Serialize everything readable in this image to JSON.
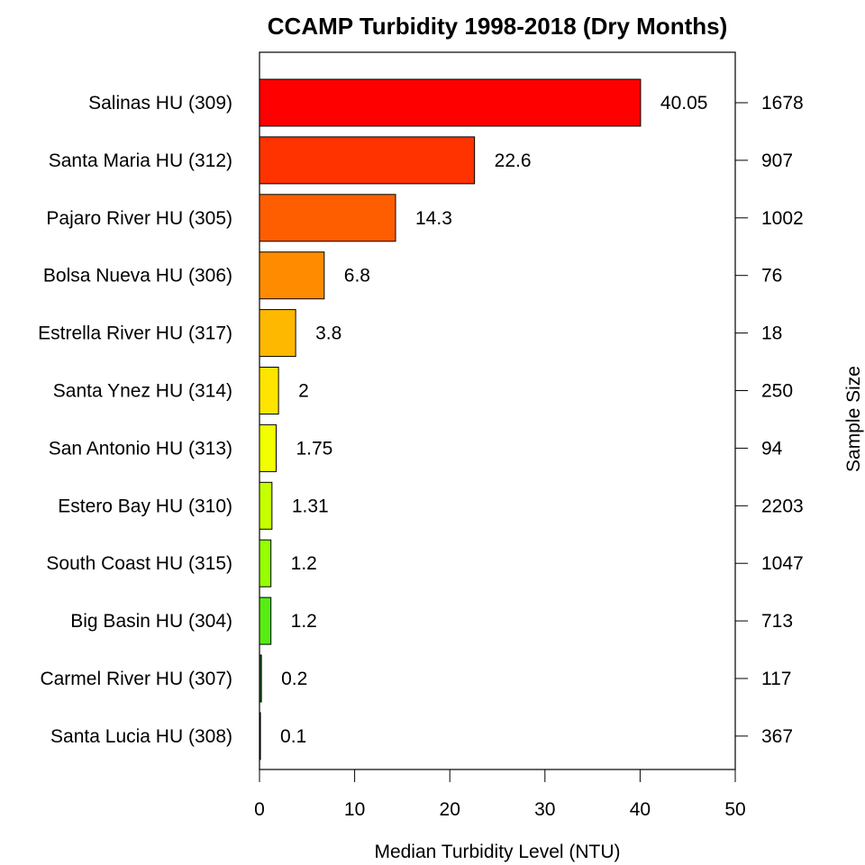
{
  "chart_data": {
    "type": "bar",
    "orientation": "horizontal",
    "title": "CCAMP Turbidity 1998-2018 (Dry Months)",
    "xlabel": "Median Turbidity Level (NTU)",
    "right_axis_label": "Sample Size",
    "xlim": [
      0,
      50
    ],
    "x_ticks": [
      0,
      10,
      20,
      30,
      40,
      50
    ],
    "grid": false,
    "categories": [
      "Salinas HU (309)",
      "Santa Maria HU (312)",
      "Pajaro River HU (305)",
      "Bolsa Nueva HU (306)",
      "Estrella River HU (317)",
      "Santa Ynez HU (314)",
      "San Antonio HU (313)",
      "Estero Bay HU (310)",
      "South Coast HU (315)",
      "Big Basin HU (304)",
      "Carmel River HU (307)",
      "Santa Lucia HU (308)"
    ],
    "values": [
      40.05,
      22.6,
      14.3,
      6.8,
      3.8,
      2,
      1.75,
      1.31,
      1.2,
      1.2,
      0.2,
      0.1
    ],
    "value_labels": [
      "40.05",
      "22.6",
      "14.3",
      "6.8",
      "3.8",
      "2",
      "1.75",
      "1.31",
      "1.2",
      "1.2",
      "0.2",
      "0.1"
    ],
    "sample_sizes": [
      "1678",
      "907",
      "1002",
      "76",
      "18",
      "250",
      "94",
      "2203",
      "1047",
      "713",
      "117",
      "367"
    ],
    "colors": [
      "#ff0000",
      "#ff3300",
      "#ff5e00",
      "#ff8c00",
      "#ffb800",
      "#ffe400",
      "#f2ff00",
      "#c5ff00",
      "#97ff00",
      "#55ee11",
      "#1a5e1a",
      "#0a2a0a"
    ]
  }
}
